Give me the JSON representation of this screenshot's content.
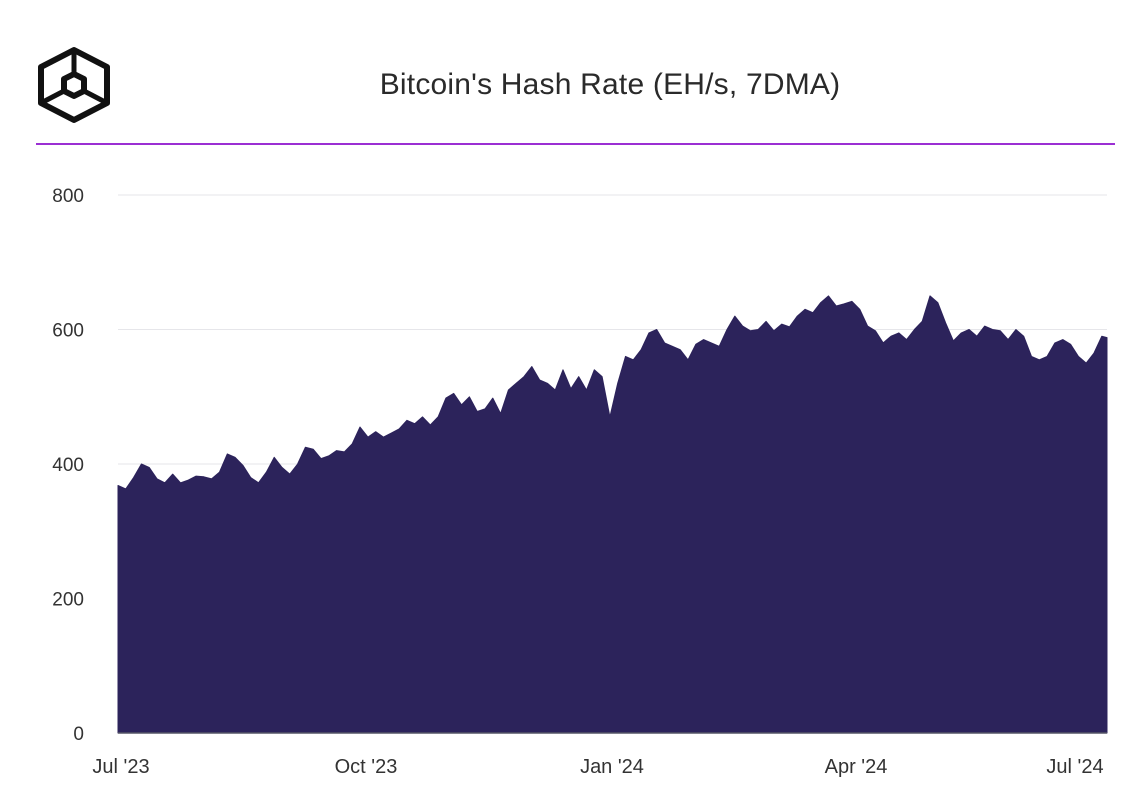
{
  "brand": {
    "logo_icon": "hexagon-cube-logo-icon",
    "accent_color": "#9b2fd3"
  },
  "chart_data": {
    "type": "area",
    "title": "Bitcoin's Hash Rate (EH/s, 7DMA)",
    "xlabel": "",
    "ylabel": "",
    "ylim": [
      0,
      800
    ],
    "y_ticks": [
      0,
      200,
      400,
      600,
      800
    ],
    "x_ticks": [
      "Jul '23",
      "Oct '23",
      "Jan '24",
      "Apr '24",
      "Jul '24"
    ],
    "x_range": [
      "2023-07-01",
      "2024-07-15"
    ],
    "grid": true,
    "legend": "none",
    "series_color": "#2c235b",
    "series": [
      {
        "x": [
          "2023-07-01",
          "2023-07-04",
          "2023-07-07",
          "2023-07-10",
          "2023-07-13",
          "2023-07-16",
          "2023-07-19",
          "2023-07-22",
          "2023-07-25",
          "2023-07-28",
          "2023-07-31",
          "2023-08-03",
          "2023-08-06",
          "2023-08-09",
          "2023-08-12",
          "2023-08-15",
          "2023-08-18",
          "2023-08-21",
          "2023-08-24",
          "2023-08-27",
          "2023-08-30",
          "2023-09-02",
          "2023-09-05",
          "2023-09-08",
          "2023-09-11",
          "2023-09-14",
          "2023-09-17",
          "2023-09-20",
          "2023-09-23",
          "2023-09-26",
          "2023-09-29",
          "2023-10-02",
          "2023-10-05",
          "2023-10-08",
          "2023-10-11",
          "2023-10-14",
          "2023-10-17",
          "2023-10-20",
          "2023-10-23",
          "2023-10-26",
          "2023-10-29",
          "2023-11-01",
          "2023-11-04",
          "2023-11-07",
          "2023-11-10",
          "2023-11-13",
          "2023-11-16",
          "2023-11-19",
          "2023-11-22",
          "2023-11-25",
          "2023-11-28",
          "2023-12-01",
          "2023-12-04",
          "2023-12-07",
          "2023-12-10",
          "2023-12-13",
          "2023-12-16",
          "2023-12-19",
          "2023-12-22",
          "2023-12-25",
          "2023-12-28",
          "2023-12-31",
          "2024-01-03",
          "2024-01-06",
          "2024-01-09",
          "2024-01-12",
          "2024-01-15",
          "2024-01-18",
          "2024-01-21",
          "2024-01-24",
          "2024-01-27",
          "2024-01-30",
          "2024-02-02",
          "2024-02-05",
          "2024-02-08",
          "2024-02-11",
          "2024-02-14",
          "2024-02-17",
          "2024-02-20",
          "2024-02-23",
          "2024-02-26",
          "2024-02-29",
          "2024-03-03",
          "2024-03-06",
          "2024-03-09",
          "2024-03-12",
          "2024-03-15",
          "2024-03-18",
          "2024-03-21",
          "2024-03-24",
          "2024-03-27",
          "2024-03-30",
          "2024-04-02",
          "2024-04-05",
          "2024-04-08",
          "2024-04-11",
          "2024-04-14",
          "2024-04-17",
          "2024-04-20",
          "2024-04-23",
          "2024-04-26",
          "2024-04-29",
          "2024-05-02",
          "2024-05-05",
          "2024-05-08",
          "2024-05-11",
          "2024-05-14",
          "2024-05-17",
          "2024-05-20",
          "2024-05-23",
          "2024-05-26",
          "2024-05-29",
          "2024-06-01",
          "2024-06-04",
          "2024-06-07",
          "2024-06-10",
          "2024-06-13",
          "2024-06-16",
          "2024-06-19",
          "2024-06-22",
          "2024-06-25",
          "2024-06-28",
          "2024-07-01",
          "2024-07-04",
          "2024-07-07",
          "2024-07-10",
          "2024-07-13",
          "2024-07-15"
        ],
        "values": [
          368,
          363,
          380,
          400,
          395,
          378,
          372,
          385,
          372,
          376,
          382,
          381,
          378,
          388,
          415,
          410,
          398,
          380,
          372,
          388,
          410,
          395,
          385,
          400,
          425,
          422,
          408,
          412,
          420,
          418,
          430,
          455,
          440,
          448,
          440,
          446,
          452,
          465,
          460,
          470,
          458,
          470,
          498,
          505,
          488,
          500,
          478,
          482,
          498,
          475,
          510,
          520,
          530,
          545,
          525,
          520,
          510,
          540,
          512,
          530,
          510,
          540,
          530,
          470,
          520,
          560,
          555,
          570,
          595,
          600,
          580,
          575,
          570,
          555,
          578,
          585,
          580,
          575,
          600,
          620,
          605,
          598,
          600,
          612,
          598,
          608,
          604,
          620,
          630,
          625,
          640,
          650,
          635,
          638,
          642,
          630,
          605,
          598,
          580,
          590,
          595,
          585,
          600,
          612,
          650,
          640,
          610,
          583,
          595,
          600,
          590,
          605,
          600,
          598,
          585,
          600,
          590,
          560,
          555,
          560,
          580,
          585,
          578,
          560,
          550,
          565,
          590,
          588
        ]
      }
    ]
  }
}
